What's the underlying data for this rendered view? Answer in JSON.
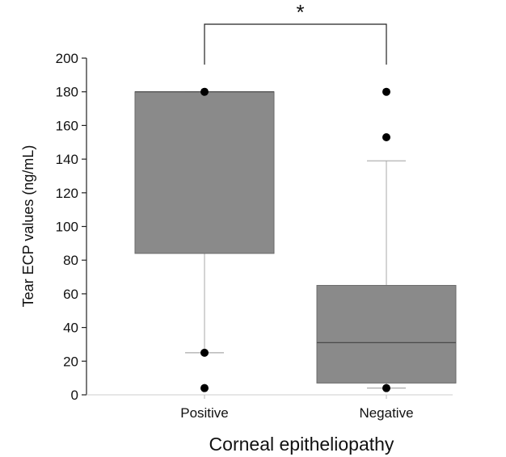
{
  "chart_data": {
    "type": "box",
    "categories": [
      "Positive",
      "Negative"
    ],
    "xlabel": "Corneal epitheliopathy",
    "ylabel": "Tear ECP values (ng/mL)",
    "ylim": [
      0,
      200
    ],
    "yticks": [
      0,
      20,
      40,
      60,
      80,
      100,
      120,
      140,
      160,
      180,
      200
    ],
    "grid": false,
    "boxes": [
      {
        "category": "Positive",
        "q1": 84,
        "median": 180,
        "q3": 180,
        "whisker_low": 25,
        "whisker_high": 180,
        "outliers": [
          180,
          25,
          4
        ]
      },
      {
        "category": "Negative",
        "q1": 7,
        "median": 31,
        "q3": 65,
        "whisker_low": 4,
        "whisker_high": 139,
        "outliers": [
          180,
          153,
          4
        ]
      }
    ],
    "significance": {
      "between": [
        "Positive",
        "Negative"
      ],
      "label": "*"
    },
    "colors": {
      "box_fill": "#8a8a8a",
      "box_stroke": "#6b6b6b",
      "line": "#222222",
      "whisker": "#aaaaaa",
      "outlier": "#000000"
    }
  }
}
